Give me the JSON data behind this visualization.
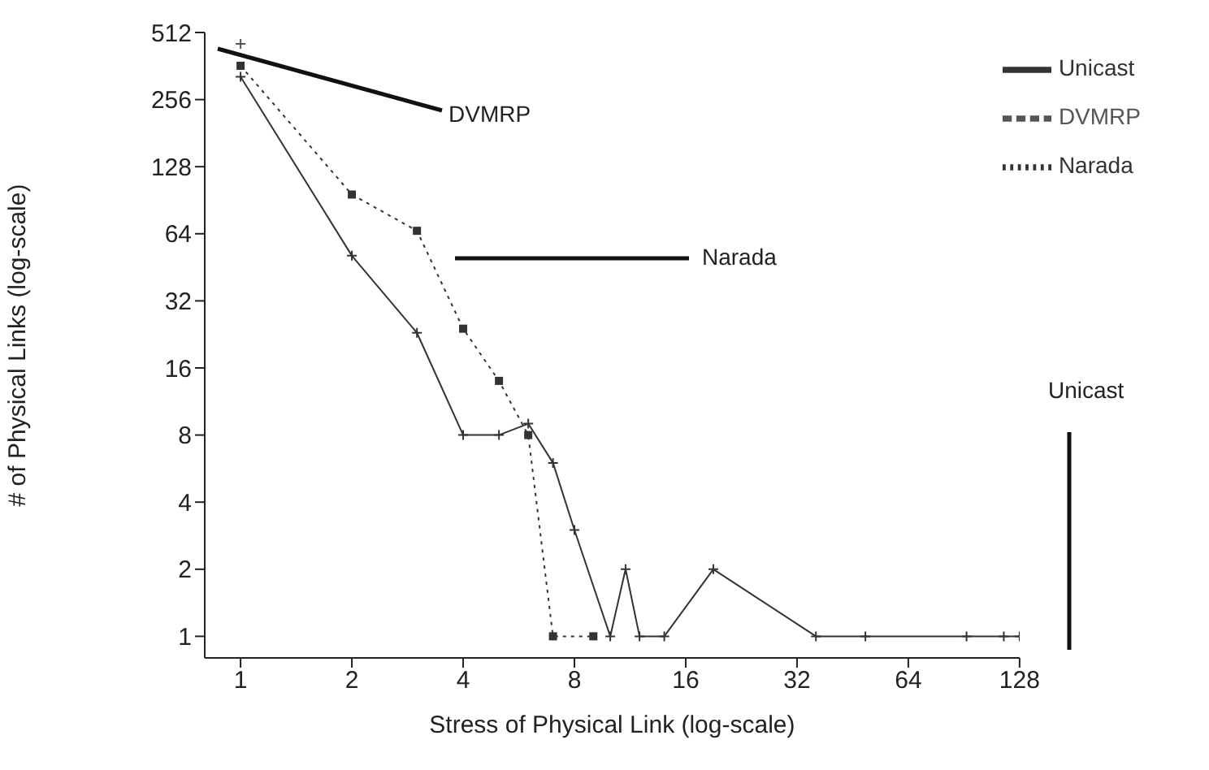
{
  "chart_data": {
    "type": "line",
    "xlabel": "Stress of Physical Link (log-scale)",
    "ylabel": "# of Physical Links (log-scale)",
    "log": "xy",
    "xlim": [
      0.8,
      128
    ],
    "ylim": [
      0.8,
      512
    ],
    "xticks": [
      1,
      2,
      4,
      8,
      16,
      32,
      64,
      128
    ],
    "yticks": [
      1,
      2,
      4,
      8,
      16,
      32,
      64,
      128,
      256,
      512
    ],
    "grid": false,
    "legend": "top right",
    "series": [
      {
        "name": "Unicast",
        "color": "#333333",
        "line_style": "solid",
        "marker": "cross",
        "x": [
          1,
          2,
          3,
          4,
          5,
          6,
          7,
          8,
          10,
          11,
          12,
          14,
          19,
          36,
          49,
          92,
          116,
          128
        ],
        "values": [
          324,
          51,
          23,
          8,
          8,
          9,
          6,
          3,
          1,
          2,
          1,
          1,
          2,
          1,
          1,
          1,
          1,
          1
        ]
      },
      {
        "name": "DVMRP",
        "color": "#555555",
        "line_style": "dashed",
        "marker": "cross",
        "x": [
          1
        ],
        "values": [
          455
        ]
      },
      {
        "name": "Narada",
        "color": "#333333",
        "line_style": "dotted",
        "marker": "square",
        "x": [
          1,
          2,
          3,
          4,
          5,
          6,
          7,
          9
        ],
        "values": [
          363,
          96,
          66,
          24,
          14,
          8,
          1,
          1
        ]
      }
    ],
    "annotations": [
      "DVMRP",
      "Narada",
      "Unicast"
    ]
  }
}
